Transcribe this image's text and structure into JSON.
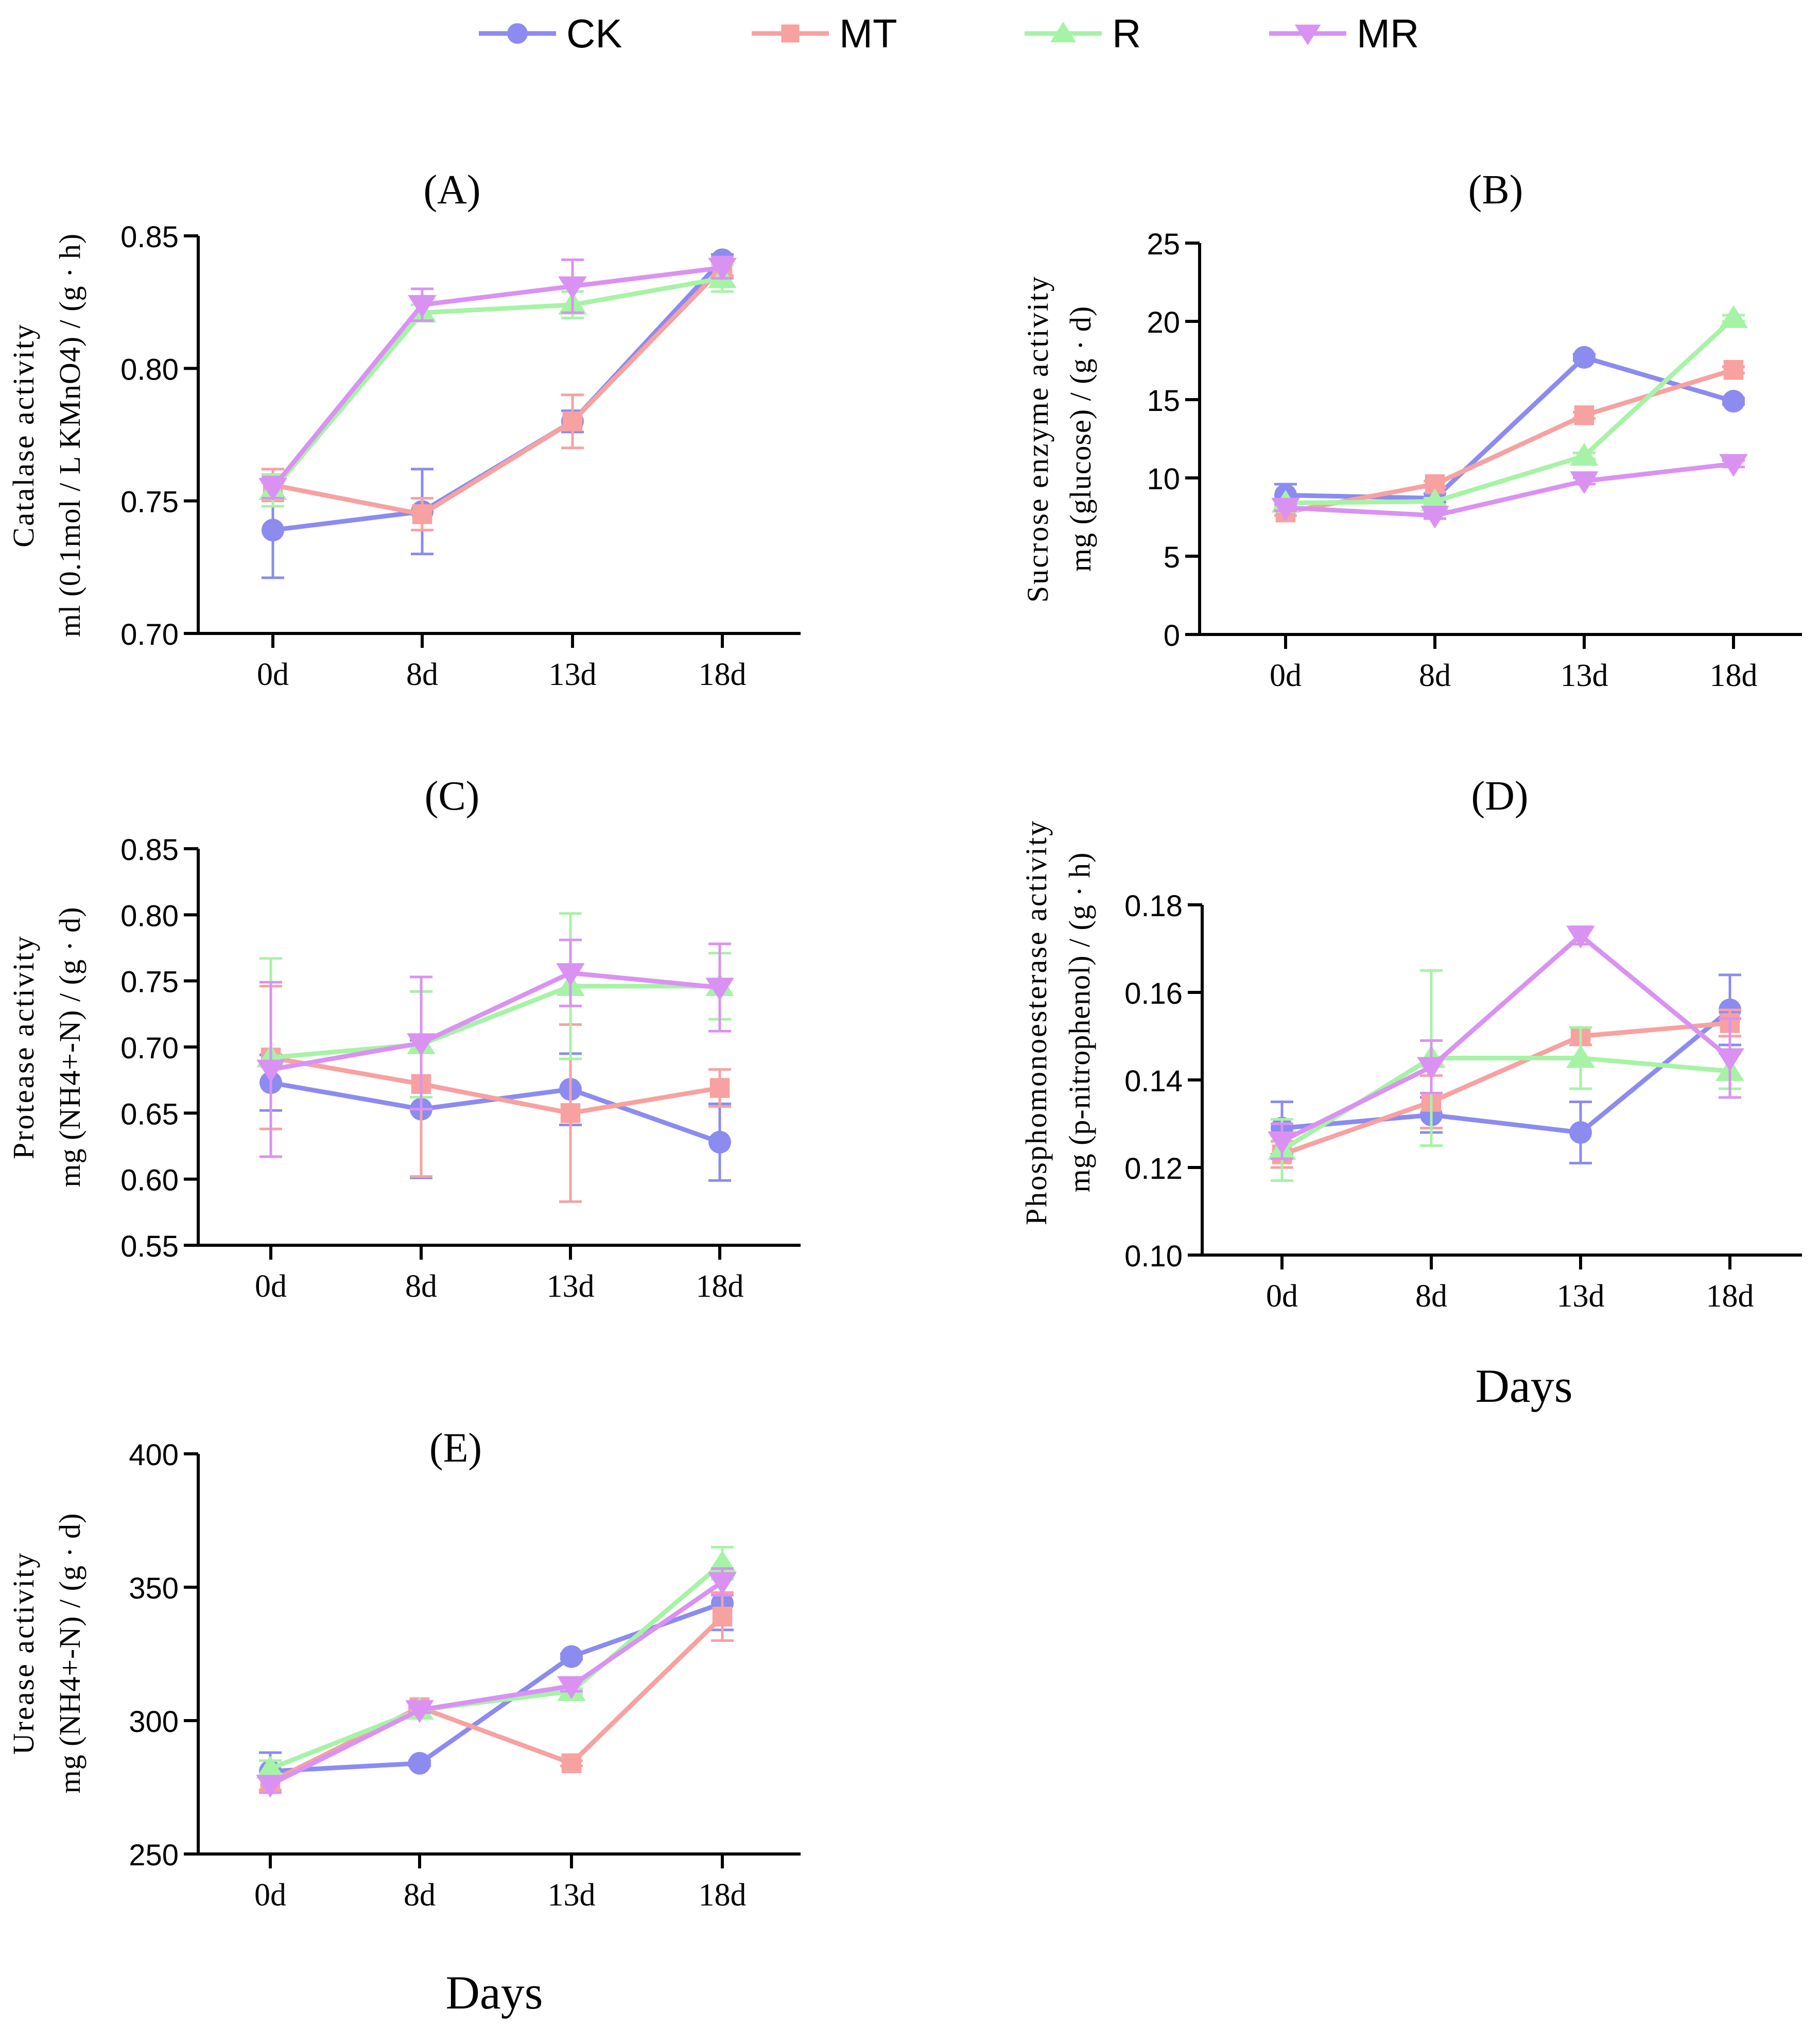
{
  "legend": [
    {
      "name": "CK",
      "color": "#8b8bf0",
      "marker": "circle"
    },
    {
      "name": "MT",
      "color": "#f7a1a1",
      "marker": "square"
    },
    {
      "name": "R",
      "color": "#a6f3a6",
      "marker": "triangle-up"
    },
    {
      "name": "MR",
      "color": "#da92f2",
      "marker": "triangle-down"
    }
  ],
  "chart_data": [
    {
      "type": "line",
      "title": "(A)",
      "ylabel_lines": [
        "Catalase activity",
        "ml (0.1mol / L KMnO4) / (g · h)"
      ],
      "xlabel": "",
      "categories": [
        "0d",
        "8d",
        "13d",
        "18d"
      ],
      "ylim": [
        0.7,
        0.85
      ],
      "yticks": [
        0.7,
        0.75,
        0.8,
        0.85
      ],
      "ytick_labels": [
        "0.70",
        "0.75",
        "0.80",
        "0.85"
      ],
      "series": [
        {
          "name": "CK",
          "values": [
            0.739,
            0.746,
            0.78,
            0.841
          ],
          "err": [
            0.018,
            0.016,
            0.004,
            0.002
          ]
        },
        {
          "name": "MT",
          "values": [
            0.756,
            0.745,
            0.78,
            0.838
          ],
          "err": [
            0.006,
            0.006,
            0.01,
            0.003
          ]
        },
        {
          "name": "R",
          "values": [
            0.754,
            0.821,
            0.824,
            0.834
          ],
          "err": [
            0.006,
            0.003,
            0.005,
            0.005
          ]
        },
        {
          "name": "MR",
          "values": [
            0.755,
            0.824,
            0.831,
            0.838
          ],
          "err": [
            0.004,
            0.006,
            0.01,
            0.004
          ]
        }
      ]
    },
    {
      "type": "line",
      "title": "(B)",
      "ylabel_lines": [
        "Sucrose enzyme activity",
        "mg (glucose) / (g · d)"
      ],
      "xlabel": "",
      "categories": [
        "0d",
        "8d",
        "13d",
        "18d"
      ],
      "ylim": [
        0,
        25
      ],
      "yticks": [
        0,
        5,
        10,
        15,
        20,
        25
      ],
      "ytick_labels": [
        "0",
        "5",
        "10",
        "15",
        "20",
        "25"
      ],
      "series": [
        {
          "name": "CK",
          "values": [
            8.9,
            8.7,
            17.7,
            14.9
          ],
          "err": [
            0.7,
            0.3,
            0.2,
            0.2
          ]
        },
        {
          "name": "MT",
          "values": [
            7.8,
            9.6,
            14.0,
            16.9
          ],
          "err": [
            0.2,
            0.2,
            0.2,
            0.2
          ]
        },
        {
          "name": "R",
          "values": [
            8.4,
            8.5,
            11.4,
            20.2
          ],
          "err": [
            0.2,
            0.2,
            0.2,
            0.2
          ]
        },
        {
          "name": "MR",
          "values": [
            8.1,
            7.6,
            9.8,
            10.9
          ],
          "err": [
            0.2,
            0.2,
            0.2,
            0.2
          ]
        }
      ]
    },
    {
      "type": "line",
      "title": "(C)",
      "ylabel_lines": [
        "Protease activity",
        "mg (NH4+-N) / (g · d)"
      ],
      "xlabel": "",
      "categories": [
        "0d",
        "8d",
        "13d",
        "18d"
      ],
      "ylim": [
        0.55,
        0.85
      ],
      "yticks": [
        0.55,
        0.6,
        0.65,
        0.7,
        0.75,
        0.8,
        0.85
      ],
      "ytick_labels": [
        "0.55",
        "0.60",
        "0.65",
        "0.70",
        "0.75",
        "0.80",
        "0.85"
      ],
      "series": [
        {
          "name": "CK",
          "values": [
            0.673,
            0.653,
            0.668,
            0.628
          ],
          "err": [
            0.021,
            0.052,
            0.027,
            0.029
          ]
        },
        {
          "name": "MT",
          "values": [
            0.692,
            0.672,
            0.65,
            0.669
          ],
          "err": [
            0.054,
            0.07,
            0.067,
            0.014
          ]
        },
        {
          "name": "R",
          "values": [
            0.692,
            0.702,
            0.746,
            0.746
          ],
          "err": [
            0.075,
            0.04,
            0.055,
            0.025
          ]
        },
        {
          "name": "MR",
          "values": [
            0.683,
            0.703,
            0.756,
            0.745
          ],
          "err": [
            0.066,
            0.05,
            0.025,
            0.033
          ]
        }
      ]
    },
    {
      "type": "line",
      "title": "(D)",
      "ylabel_lines": [
        "Phosphomonoesterase activity",
        "mg (p-nitrophenol) / (g · h)"
      ],
      "xlabel": "Days",
      "categories": [
        "0d",
        "8d",
        "13d",
        "18d"
      ],
      "ylim": [
        0.1,
        0.18
      ],
      "yticks": [
        0.1,
        0.12,
        0.14,
        0.16,
        0.18
      ],
      "ytick_labels": [
        "0.10",
        "0.12",
        "0.14",
        "0.16",
        "0.18"
      ],
      "series": [
        {
          "name": "CK",
          "values": [
            0.129,
            0.132,
            0.128,
            0.156
          ],
          "err": [
            0.006,
            0.004,
            0.007,
            0.008
          ]
        },
        {
          "name": "MT",
          "values": [
            0.123,
            0.135,
            0.15,
            0.153
          ],
          "err": [
            0.003,
            0.006,
            0.002,
            0.003
          ]
        },
        {
          "name": "R",
          "values": [
            0.124,
            0.145,
            0.145,
            0.142
          ],
          "err": [
            0.007,
            0.02,
            0.007,
            0.004
          ]
        },
        {
          "name": "MR",
          "values": [
            0.126,
            0.143,
            0.173,
            0.145
          ],
          "err": [
            0.004,
            0.006,
            0.002,
            0.009
          ]
        }
      ]
    },
    {
      "type": "line",
      "title": "(E)",
      "ylabel_lines": [
        "Urease activity",
        "mg (NH4+-N) / (g · d)"
      ],
      "xlabel": "Days",
      "categories": [
        "0d",
        "8d",
        "13d",
        "18d"
      ],
      "ylim": [
        250,
        400
      ],
      "yticks": [
        250,
        300,
        350,
        400
      ],
      "ytick_labels": [
        "250",
        "300",
        "350",
        "400"
      ],
      "series": [
        {
          "name": "CK",
          "values": [
            281,
            284,
            324,
            344
          ],
          "err": [
            7,
            1,
            1,
            10
          ]
        },
        {
          "name": "MT",
          "values": [
            277,
            305,
            284,
            339
          ],
          "err": [
            3,
            1,
            1,
            9
          ]
        },
        {
          "name": "R",
          "values": [
            282,
            304,
            311,
            359
          ],
          "err": [
            3,
            1,
            1,
            6
          ]
        },
        {
          "name": "MR",
          "values": [
            276,
            304,
            313,
            352
          ],
          "err": [
            3,
            1,
            2,
            5
          ]
        }
      ]
    }
  ]
}
